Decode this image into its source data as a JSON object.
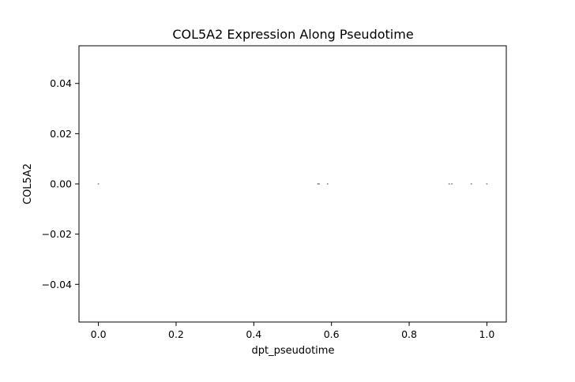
{
  "chart_data": {
    "type": "scatter",
    "title": "COL5A2 Expression Along Pseudotime",
    "xlabel": "dpt_pseudotime",
    "ylabel": "COL5A2",
    "xlim": [
      -0.05,
      1.05
    ],
    "ylim": [
      -0.055,
      0.055
    ],
    "xticks": [
      0.0,
      0.2,
      0.4,
      0.6,
      0.8,
      1.0
    ],
    "xtick_labels": [
      "0.0",
      "0.2",
      "0.4",
      "0.6",
      "0.8",
      "1.0"
    ],
    "yticks": [
      -0.04,
      -0.02,
      0.0,
      0.02,
      0.04
    ],
    "ytick_labels": [
      "−0.04",
      "−0.02",
      "0.00",
      "0.02",
      "0.04"
    ],
    "grid": false,
    "legend": "none",
    "point_color": "#808080",
    "points": [
      {
        "x": 0.0,
        "y": 0.0
      },
      {
        "x": 0.565,
        "y": 0.0
      },
      {
        "x": 0.568,
        "y": 0.0
      },
      {
        "x": 0.59,
        "y": 0.0
      },
      {
        "x": 0.903,
        "y": 0.0
      },
      {
        "x": 0.91,
        "y": 0.0
      },
      {
        "x": 0.96,
        "y": 0.0
      },
      {
        "x": 1.0,
        "y": 0.0
      }
    ]
  }
}
